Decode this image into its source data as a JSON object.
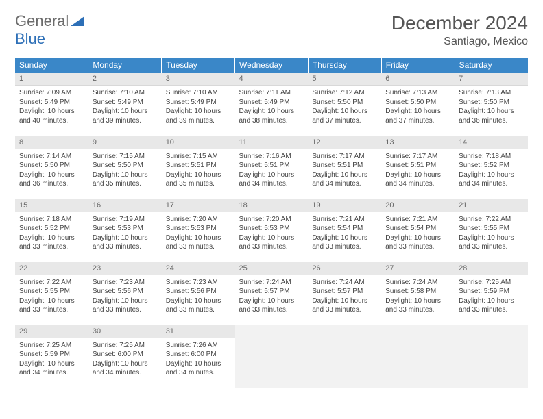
{
  "logo": {
    "word1": "General",
    "word2": "Blue"
  },
  "title": "December 2024",
  "location": "Santiago, Mexico",
  "colors": {
    "header_bg": "#3a87c8",
    "header_text": "#ffffff",
    "daynum_bg": "#e8e8e8",
    "row_border": "#3a6fa0",
    "logo_gray": "#6b6b6b",
    "logo_blue": "#2d6fb7"
  },
  "weekdays": [
    "Sunday",
    "Monday",
    "Tuesday",
    "Wednesday",
    "Thursday",
    "Friday",
    "Saturday"
  ],
  "weeks": [
    [
      {
        "n": "1",
        "sr": "Sunrise: 7:09 AM",
        "ss": "Sunset: 5:49 PM",
        "dl": "Daylight: 10 hours and 40 minutes."
      },
      {
        "n": "2",
        "sr": "Sunrise: 7:10 AM",
        "ss": "Sunset: 5:49 PM",
        "dl": "Daylight: 10 hours and 39 minutes."
      },
      {
        "n": "3",
        "sr": "Sunrise: 7:10 AM",
        "ss": "Sunset: 5:49 PM",
        "dl": "Daylight: 10 hours and 39 minutes."
      },
      {
        "n": "4",
        "sr": "Sunrise: 7:11 AM",
        "ss": "Sunset: 5:49 PM",
        "dl": "Daylight: 10 hours and 38 minutes."
      },
      {
        "n": "5",
        "sr": "Sunrise: 7:12 AM",
        "ss": "Sunset: 5:50 PM",
        "dl": "Daylight: 10 hours and 37 minutes."
      },
      {
        "n": "6",
        "sr": "Sunrise: 7:13 AM",
        "ss": "Sunset: 5:50 PM",
        "dl": "Daylight: 10 hours and 37 minutes."
      },
      {
        "n": "7",
        "sr": "Sunrise: 7:13 AM",
        "ss": "Sunset: 5:50 PM",
        "dl": "Daylight: 10 hours and 36 minutes."
      }
    ],
    [
      {
        "n": "8",
        "sr": "Sunrise: 7:14 AM",
        "ss": "Sunset: 5:50 PM",
        "dl": "Daylight: 10 hours and 36 minutes."
      },
      {
        "n": "9",
        "sr": "Sunrise: 7:15 AM",
        "ss": "Sunset: 5:50 PM",
        "dl": "Daylight: 10 hours and 35 minutes."
      },
      {
        "n": "10",
        "sr": "Sunrise: 7:15 AM",
        "ss": "Sunset: 5:51 PM",
        "dl": "Daylight: 10 hours and 35 minutes."
      },
      {
        "n": "11",
        "sr": "Sunrise: 7:16 AM",
        "ss": "Sunset: 5:51 PM",
        "dl": "Daylight: 10 hours and 34 minutes."
      },
      {
        "n": "12",
        "sr": "Sunrise: 7:17 AM",
        "ss": "Sunset: 5:51 PM",
        "dl": "Daylight: 10 hours and 34 minutes."
      },
      {
        "n": "13",
        "sr": "Sunrise: 7:17 AM",
        "ss": "Sunset: 5:51 PM",
        "dl": "Daylight: 10 hours and 34 minutes."
      },
      {
        "n": "14",
        "sr": "Sunrise: 7:18 AM",
        "ss": "Sunset: 5:52 PM",
        "dl": "Daylight: 10 hours and 34 minutes."
      }
    ],
    [
      {
        "n": "15",
        "sr": "Sunrise: 7:18 AM",
        "ss": "Sunset: 5:52 PM",
        "dl": "Daylight: 10 hours and 33 minutes."
      },
      {
        "n": "16",
        "sr": "Sunrise: 7:19 AM",
        "ss": "Sunset: 5:53 PM",
        "dl": "Daylight: 10 hours and 33 minutes."
      },
      {
        "n": "17",
        "sr": "Sunrise: 7:20 AM",
        "ss": "Sunset: 5:53 PM",
        "dl": "Daylight: 10 hours and 33 minutes."
      },
      {
        "n": "18",
        "sr": "Sunrise: 7:20 AM",
        "ss": "Sunset: 5:53 PM",
        "dl": "Daylight: 10 hours and 33 minutes."
      },
      {
        "n": "19",
        "sr": "Sunrise: 7:21 AM",
        "ss": "Sunset: 5:54 PM",
        "dl": "Daylight: 10 hours and 33 minutes."
      },
      {
        "n": "20",
        "sr": "Sunrise: 7:21 AM",
        "ss": "Sunset: 5:54 PM",
        "dl": "Daylight: 10 hours and 33 minutes."
      },
      {
        "n": "21",
        "sr": "Sunrise: 7:22 AM",
        "ss": "Sunset: 5:55 PM",
        "dl": "Daylight: 10 hours and 33 minutes."
      }
    ],
    [
      {
        "n": "22",
        "sr": "Sunrise: 7:22 AM",
        "ss": "Sunset: 5:55 PM",
        "dl": "Daylight: 10 hours and 33 minutes."
      },
      {
        "n": "23",
        "sr": "Sunrise: 7:23 AM",
        "ss": "Sunset: 5:56 PM",
        "dl": "Daylight: 10 hours and 33 minutes."
      },
      {
        "n": "24",
        "sr": "Sunrise: 7:23 AM",
        "ss": "Sunset: 5:56 PM",
        "dl": "Daylight: 10 hours and 33 minutes."
      },
      {
        "n": "25",
        "sr": "Sunrise: 7:24 AM",
        "ss": "Sunset: 5:57 PM",
        "dl": "Daylight: 10 hours and 33 minutes."
      },
      {
        "n": "26",
        "sr": "Sunrise: 7:24 AM",
        "ss": "Sunset: 5:57 PM",
        "dl": "Daylight: 10 hours and 33 minutes."
      },
      {
        "n": "27",
        "sr": "Sunrise: 7:24 AM",
        "ss": "Sunset: 5:58 PM",
        "dl": "Daylight: 10 hours and 33 minutes."
      },
      {
        "n": "28",
        "sr": "Sunrise: 7:25 AM",
        "ss": "Sunset: 5:59 PM",
        "dl": "Daylight: 10 hours and 33 minutes."
      }
    ],
    [
      {
        "n": "29",
        "sr": "Sunrise: 7:25 AM",
        "ss": "Sunset: 5:59 PM",
        "dl": "Daylight: 10 hours and 34 minutes."
      },
      {
        "n": "30",
        "sr": "Sunrise: 7:25 AM",
        "ss": "Sunset: 6:00 PM",
        "dl": "Daylight: 10 hours and 34 minutes."
      },
      {
        "n": "31",
        "sr": "Sunrise: 7:26 AM",
        "ss": "Sunset: 6:00 PM",
        "dl": "Daylight: 10 hours and 34 minutes."
      },
      null,
      null,
      null,
      null
    ]
  ]
}
